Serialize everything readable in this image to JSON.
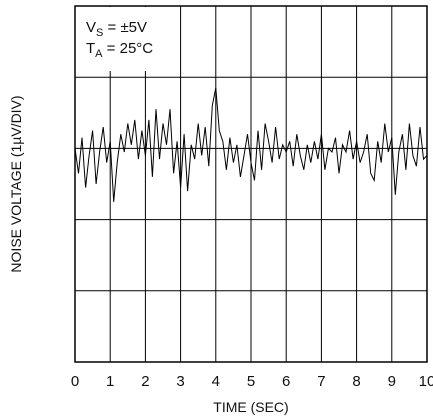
{
  "chart_data": {
    "type": "line",
    "xlabel": "TIME (SEC)",
    "ylabel": "NOISE VOLTAGE (1µV/DIV)",
    "xlim": [
      0,
      10
    ],
    "ylim": [
      -3,
      2
    ],
    "x_ticks": [
      "0",
      "1",
      "2",
      "3",
      "4",
      "5",
      "6",
      "7",
      "8",
      "9",
      "10"
    ],
    "grid": true,
    "annotations": {
      "vs_main": "V",
      "vs_sub": "S",
      "vs_value": " = ±5V",
      "ta_main": "T",
      "ta_sub": "A",
      "ta_value": " = 25°C"
    },
    "series": [
      {
        "x": [
          0.0,
          0.1,
          0.2,
          0.3,
          0.4,
          0.5,
          0.6,
          0.7,
          0.8,
          0.9,
          1.0,
          1.1,
          1.2,
          1.3,
          1.4,
          1.5,
          1.6,
          1.7,
          1.8,
          1.9,
          2.0,
          2.1,
          2.2,
          2.3,
          2.4,
          2.5,
          2.6,
          2.7,
          2.8,
          2.9,
          3.0,
          3.1,
          3.2,
          3.3,
          3.4,
          3.5,
          3.6,
          3.7,
          3.8,
          3.9,
          4.0,
          4.1,
          4.2,
          4.3,
          4.4,
          4.5,
          4.6,
          4.7,
          4.8,
          4.9,
          5.0,
          5.1,
          5.2,
          5.3,
          5.4,
          5.5,
          5.6,
          5.7,
          5.8,
          5.9,
          6.0,
          6.1,
          6.2,
          6.3,
          6.4,
          6.5,
          6.6,
          6.7,
          6.8,
          6.9,
          7.0,
          7.1,
          7.2,
          7.3,
          7.4,
          7.5,
          7.6,
          7.7,
          7.8,
          7.9,
          8.0,
          8.1,
          8.2,
          8.3,
          8.4,
          8.5,
          8.6,
          8.7,
          8.8,
          8.9,
          9.0,
          9.1,
          9.2,
          9.3,
          9.4,
          9.5,
          9.6,
          9.7,
          9.8,
          9.9,
          10.0
        ],
        "values": [
          0.0,
          -0.35,
          0.15,
          -0.55,
          -0.1,
          0.25,
          -0.5,
          -0.05,
          0.3,
          -0.2,
          0.1,
          -0.75,
          -0.2,
          0.2,
          -0.05,
          0.35,
          0.05,
          0.4,
          -0.15,
          0.25,
          -0.1,
          0.4,
          -0.4,
          0.55,
          -0.15,
          0.35,
          0.05,
          0.55,
          -0.35,
          0.1,
          -0.55,
          0.2,
          -0.6,
          0.05,
          -0.15,
          0.35,
          -0.1,
          0.3,
          -0.25,
          0.6,
          0.85,
          0.25,
          0.1,
          -0.3,
          0.15,
          -0.2,
          0.05,
          -0.4,
          -0.1,
          0.2,
          -0.2,
          -0.45,
          0.25,
          -0.3,
          0.35,
          0.1,
          -0.2,
          0.3,
          -0.15,
          0.05,
          -0.05,
          0.1,
          -0.25,
          0.2,
          -0.1,
          -0.3,
          0.05,
          -0.2,
          0.1,
          -0.15,
          0.2,
          -0.3,
          0.0,
          -0.05,
          0.15,
          -0.35,
          0.05,
          -0.05,
          0.25,
          -0.15,
          0.1,
          -0.2,
          -0.05,
          0.2,
          -0.35,
          -0.45,
          0.1,
          -0.2,
          0.35,
          -0.05,
          0.15,
          -0.65,
          -0.05,
          0.2,
          -0.3,
          0.35,
          -0.1,
          -0.25,
          0.3,
          -0.15,
          -0.1
        ]
      }
    ]
  }
}
